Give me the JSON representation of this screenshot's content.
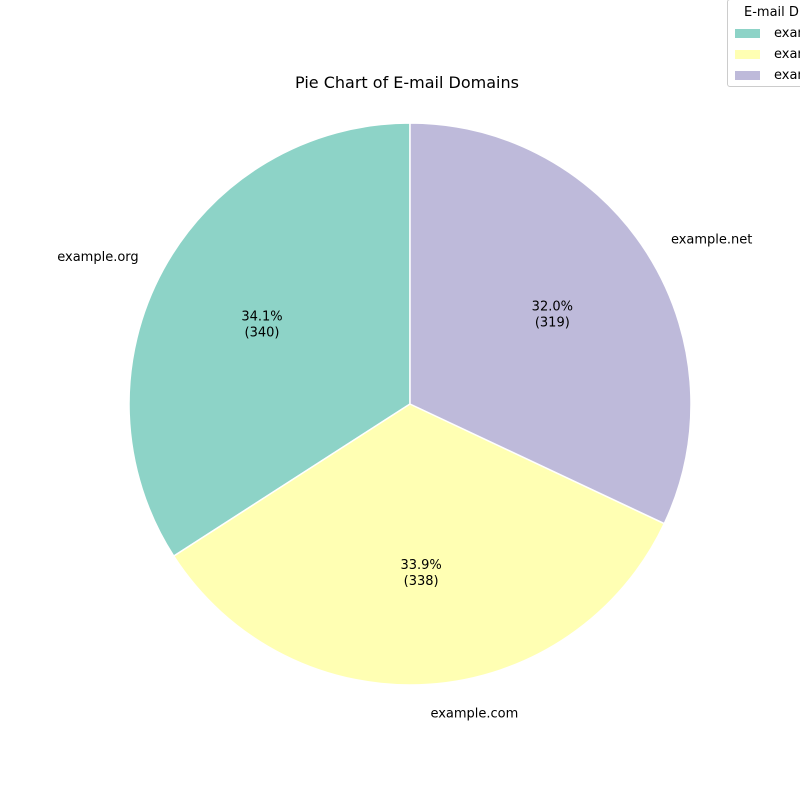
{
  "chart_data": {
    "type": "pie",
    "title": "Pie Chart of E-mail Domains",
    "categories": [
      "example.org",
      "example.com",
      "example.net"
    ],
    "values": [
      340,
      338,
      319
    ],
    "percent_labels": [
      "34.1%",
      "33.9%",
      "32.0%"
    ],
    "count_labels": [
      "(340)",
      "(338)",
      "(319)"
    ],
    "colors": [
      "#8dd3c7",
      "#ffffb3",
      "#bebada"
    ],
    "start_angle_deg": 90,
    "direction": "counterclockwise",
    "wedge_edge_color": "#ffffff",
    "legend": {
      "title": "E-mail D",
      "entries": [
        "exam",
        "exam",
        "exam"
      ],
      "placement": "top-right"
    }
  }
}
